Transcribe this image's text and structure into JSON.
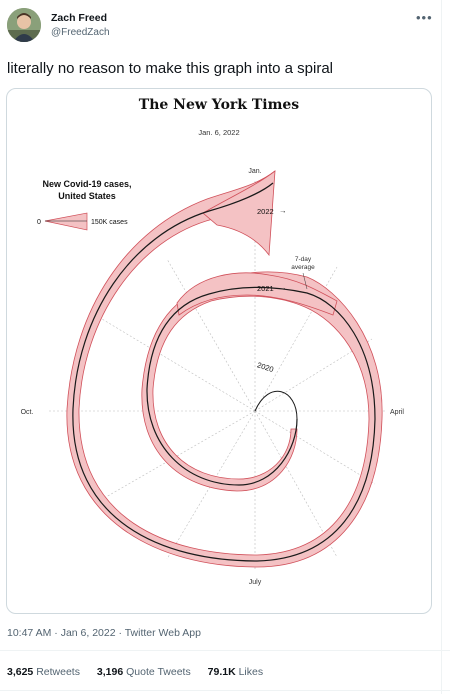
{
  "tweet": {
    "author_name": "Zach Freed",
    "author_handle": "@FreedZach",
    "more_icon": "more-icon",
    "text": "literally no reason to make this graph into a spiral",
    "timestamp": "10:47 AM · Jan 6, 2022 · Twitter Web App",
    "stats": {
      "retweets_count": "3,625",
      "retweets_label": "Retweets",
      "quotes_count": "3,196",
      "quotes_label": "Quote Tweets",
      "likes_count": "79.1K",
      "likes_label": "Likes"
    }
  },
  "chart": {
    "publisher": "The New York Times",
    "date": "Jan. 6, 2022",
    "title_line1": "New Covid-19 cases,",
    "title_line2": "United States",
    "legend_zero": "0",
    "legend_max": "150K cases",
    "month_jan": "Jan.",
    "month_april": "April",
    "month_july": "July",
    "month_oct": "Oct.",
    "year_2020": "2020",
    "year_2021": "2021",
    "year_2022": "2022",
    "avg_line1": "7-day",
    "avg_line2": "average",
    "colors": {
      "fill": "#f4c2c4",
      "edge": "#d0505a",
      "line": "#1a1a1a"
    }
  }
}
